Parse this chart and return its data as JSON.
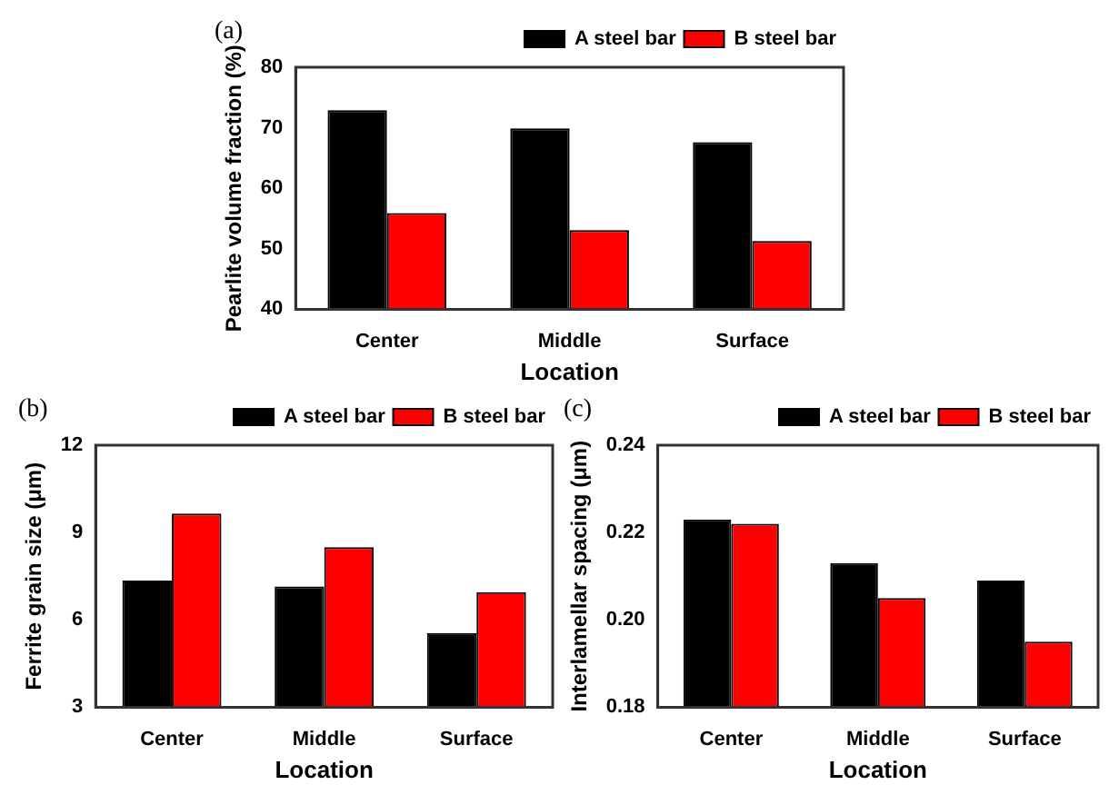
{
  "chart_data": [
    {
      "type": "bar",
      "title": "(a)",
      "xlabel": "Location",
      "ylabel": "Pearlite volume fraction (%)",
      "categories": [
        "Center",
        "Middle",
        "Surface"
      ],
      "series": [
        {
          "name": "A steel bar",
          "color": "#000000",
          "values": [
            72.9,
            69.9,
            67.6
          ]
        },
        {
          "name": "B steel bar",
          "color": "#ff0000",
          "values": [
            55.9,
            53.1,
            51.3
          ]
        }
      ],
      "ylim": [
        40,
        80
      ],
      "yticks": [
        40,
        50,
        60,
        70,
        80
      ],
      "grid": false,
      "legend": "top right"
    },
    {
      "type": "bar",
      "title": "(b)",
      "xlabel": "Location",
      "ylabel": "Ferrite grain size (μm)",
      "categories": [
        "Center",
        "Middle",
        "Surface"
      ],
      "series": [
        {
          "name": "A steel bar",
          "color": "#000000",
          "values": [
            7.35,
            7.15,
            5.55
          ]
        },
        {
          "name": "B steel bar",
          "color": "#ff0000",
          "values": [
            9.65,
            8.5,
            6.95
          ]
        }
      ],
      "ylim": [
        3,
        12
      ],
      "yticks": [
        3,
        6,
        9,
        12
      ],
      "grid": false,
      "legend": "top right"
    },
    {
      "type": "bar",
      "title": "(c)",
      "xlabel": "Location",
      "ylabel": "Interlamellar spacing (μm)",
      "categories": [
        "Center",
        "Middle",
        "Surface"
      ],
      "series": [
        {
          "name": "A steel bar",
          "color": "#000000",
          "values": [
            0.223,
            0.213,
            0.209
          ]
        },
        {
          "name": "B steel bar",
          "color": "#ff0000",
          "values": [
            0.222,
            0.205,
            0.195
          ]
        }
      ],
      "ylim": [
        0.18,
        0.24
      ],
      "yticks": [
        0.18,
        {
          "value": 0.2,
          "label": "0.20"
        },
        0.22,
        0.24
      ],
      "grid": false,
      "legend": "top right"
    }
  ]
}
